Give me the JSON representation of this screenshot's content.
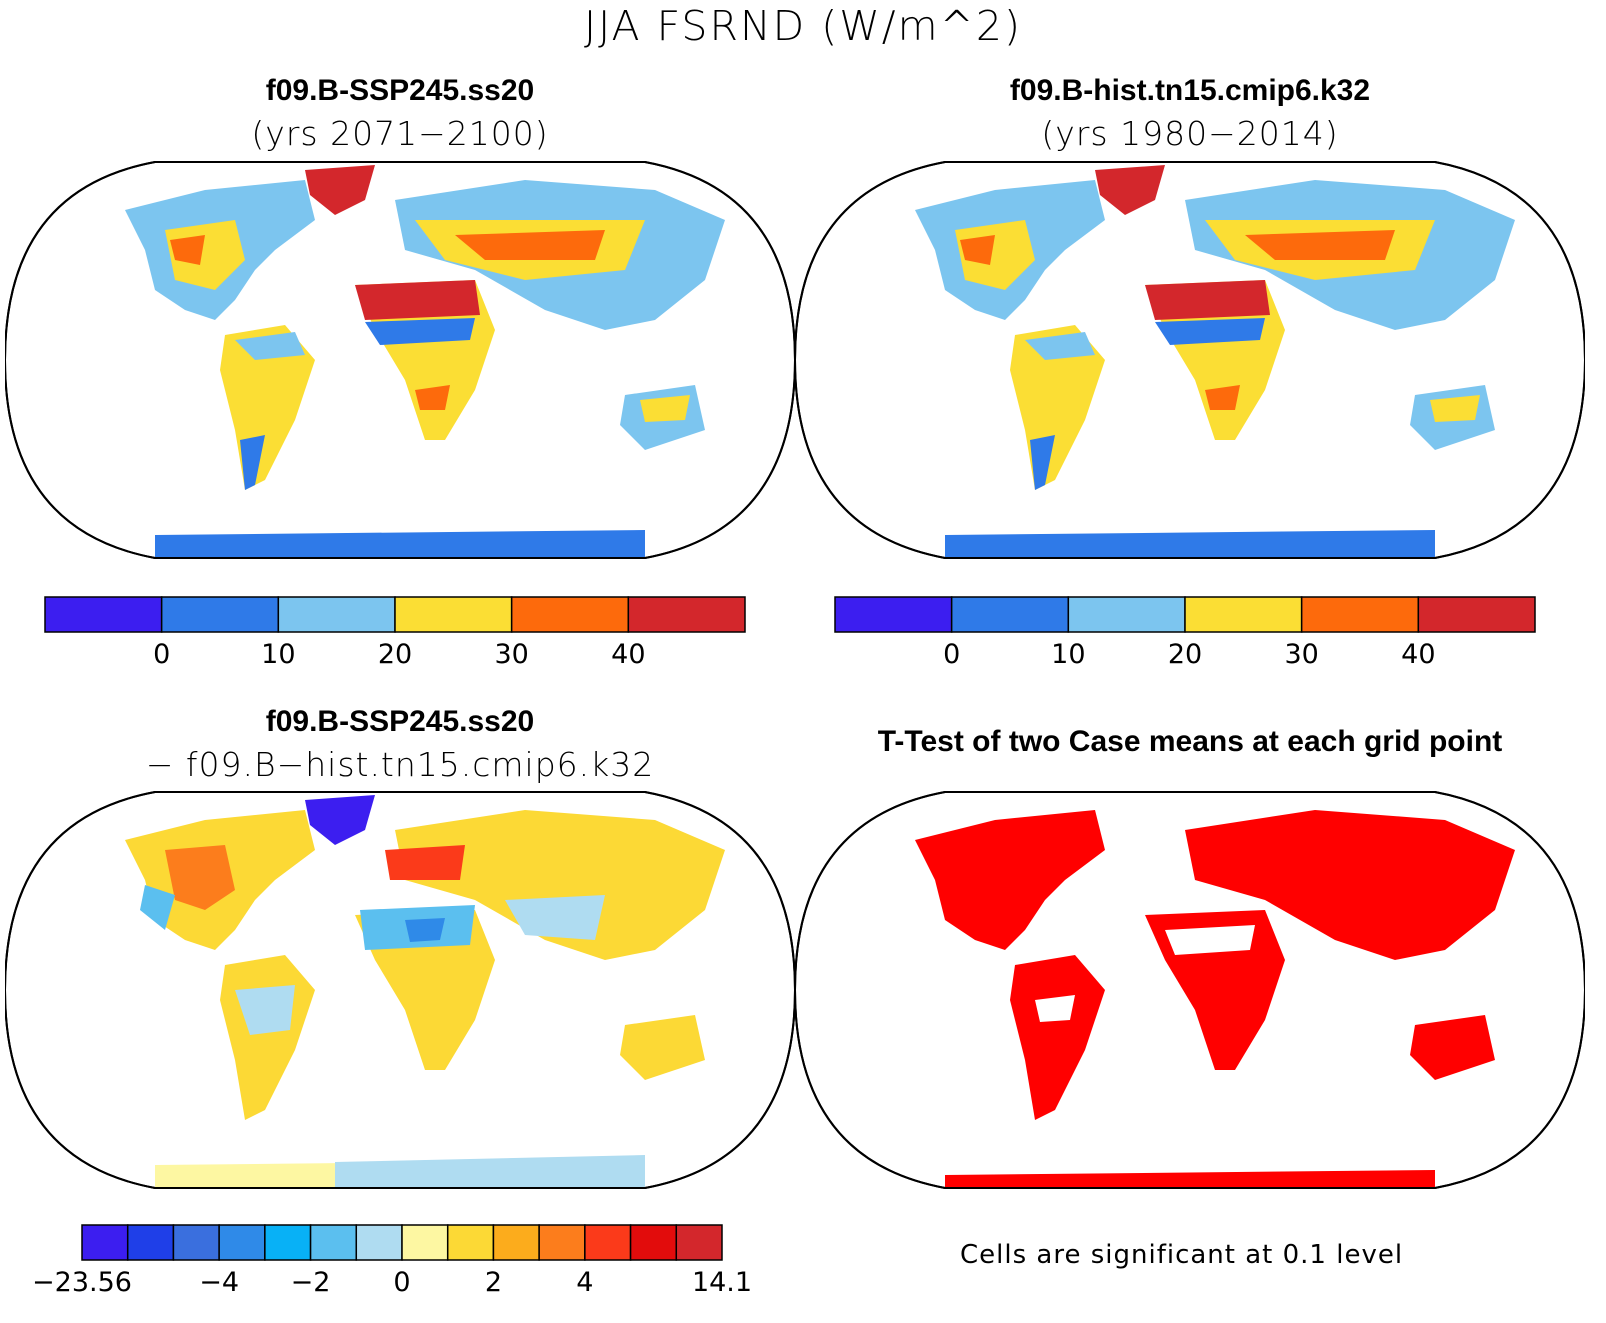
{
  "figure": {
    "title": "JJA FSRND (W/m^2)"
  },
  "panels": [
    {
      "title": "f09.B-SSP245.ss20",
      "subtitle": "(yrs 2071−2100)",
      "colorbar": {
        "colors": [
          "#3c1ef0",
          "#2f7ae8",
          "#7cc5ef",
          "#fbde34",
          "#fd6a0c",
          "#d3272c"
        ],
        "labels": [
          "0",
          "10",
          "20",
          "30",
          "40"
        ]
      }
    },
    {
      "title": "f09.B-hist.tn15.cmip6.k32",
      "subtitle": "(yrs 1980−2014)",
      "colorbar": {
        "colors": [
          "#3c1ef0",
          "#2f7ae8",
          "#7cc5ef",
          "#fbde34",
          "#fd6a0c",
          "#d3272c"
        ],
        "labels": [
          "0",
          "10",
          "20",
          "30",
          "40"
        ]
      }
    },
    {
      "title": "f09.B-SSP245.ss20",
      "subtitle": "− f09.B−hist.tn15.cmip6.k32",
      "colorbar": {
        "colors": [
          "#3c1ef0",
          "#1f3fe8",
          "#3a6fde",
          "#2f8ae8",
          "#08b1f6",
          "#5bbfef",
          "#afdcf1",
          "#fdf7a2",
          "#fcd935",
          "#fcac1c",
          "#fc7d1c",
          "#fb3a1a",
          "#e20c0c",
          "#d3272c"
        ],
        "labels": [
          "−23.56",
          "−4",
          "−2",
          "0",
          "2",
          "4",
          "14.1"
        ]
      }
    },
    {
      "title": "T-Test of two Case means at each grid point",
      "footnote": "Cells are significant at 0.1 level"
    }
  ]
}
